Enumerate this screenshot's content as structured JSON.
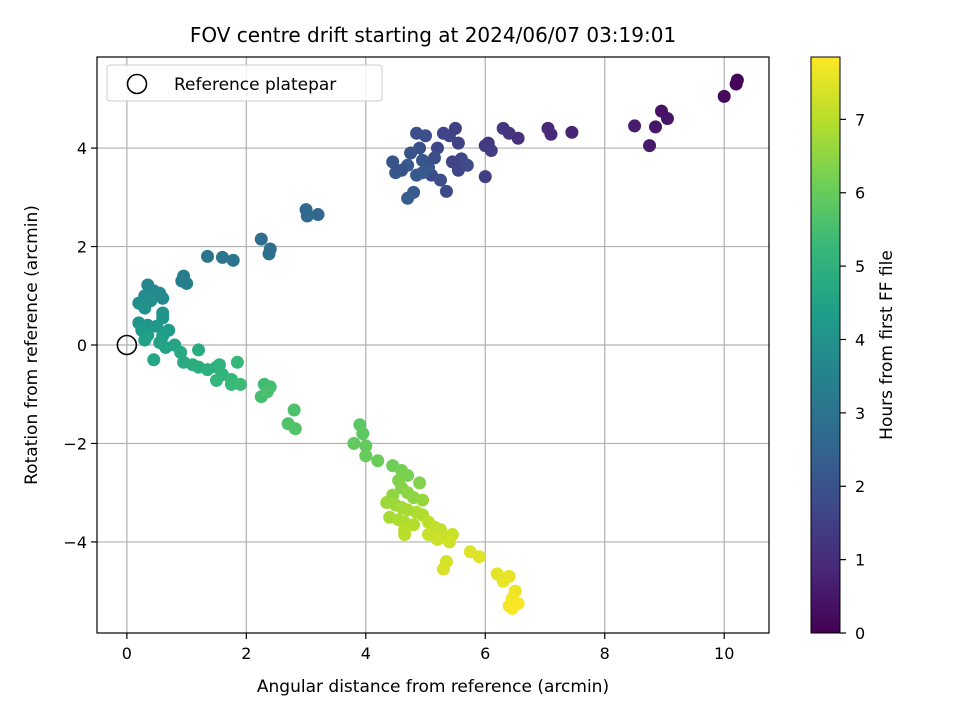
{
  "chart_data": {
    "type": "scatter",
    "title": "FOV centre drift starting at 2024/06/07 03:19:01",
    "xlabel": "Angular distance from reference (arcmin)",
    "ylabel": "Rotation from reference (arcmin)",
    "xlim": [
      -0.5,
      10.75
    ],
    "ylim": [
      -5.85,
      5.85
    ],
    "xticks": [
      0,
      2,
      4,
      6,
      8,
      10
    ],
    "yticks": [
      -4,
      -2,
      0,
      2,
      4
    ],
    "xtick_labels": [
      "0",
      "2",
      "4",
      "6",
      "8",
      "10"
    ],
    "ytick_labels": [
      "−4",
      "−2",
      "0",
      "2",
      "4"
    ],
    "grid": true,
    "legend": {
      "placement": "upper-left",
      "entries": [
        {
          "label": "Reference platepar",
          "marker": "open-circle"
        }
      ]
    },
    "reference_point": {
      "x": 0,
      "y": 0
    },
    "colorbar": {
      "label": "Hours from first FF file",
      "colormap": "viridis",
      "range": [
        0,
        7.85
      ],
      "ticks": [
        0,
        1,
        2,
        3,
        4,
        5,
        6,
        7
      ],
      "tick_labels": [
        "0",
        "1",
        "2",
        "3",
        "4",
        "5",
        "6",
        "7"
      ]
    },
    "colormap_stops": [
      "#440154",
      "#482878",
      "#3e4989",
      "#31688e",
      "#26828e",
      "#1f9e89",
      "#35b779",
      "#6ece58",
      "#b5de2b",
      "#fde725"
    ],
    "points": [
      {
        "x": 10.22,
        "y": 5.38,
        "h": 0.05
      },
      {
        "x": 10.2,
        "y": 5.3,
        "h": 0.1
      },
      {
        "x": 10.0,
        "y": 5.05,
        "h": 0.2
      },
      {
        "x": 8.95,
        "y": 4.75,
        "h": 0.4
      },
      {
        "x": 9.05,
        "y": 4.6,
        "h": 0.45
      },
      {
        "x": 8.85,
        "y": 4.43,
        "h": 0.5
      },
      {
        "x": 8.5,
        "y": 4.45,
        "h": 0.6
      },
      {
        "x": 8.75,
        "y": 4.05,
        "h": 0.55
      },
      {
        "x": 7.45,
        "y": 4.32,
        "h": 0.8
      },
      {
        "x": 7.05,
        "y": 4.4,
        "h": 0.9
      },
      {
        "x": 7.1,
        "y": 4.28,
        "h": 0.95
      },
      {
        "x": 6.55,
        "y": 4.2,
        "h": 1.1
      },
      {
        "x": 6.4,
        "y": 4.3,
        "h": 1.2
      },
      {
        "x": 6.3,
        "y": 4.4,
        "h": 1.25
      },
      {
        "x": 6.05,
        "y": 4.1,
        "h": 1.3
      },
      {
        "x": 6.0,
        "y": 4.05,
        "h": 1.35
      },
      {
        "x": 6.1,
        "y": 3.95,
        "h": 1.4
      },
      {
        "x": 6.0,
        "y": 3.42,
        "h": 1.45
      },
      {
        "x": 5.5,
        "y": 4.4,
        "h": 1.5
      },
      {
        "x": 5.55,
        "y": 4.1,
        "h": 1.55
      },
      {
        "x": 5.4,
        "y": 4.25,
        "h": 1.6
      },
      {
        "x": 5.3,
        "y": 4.3,
        "h": 1.65
      },
      {
        "x": 5.2,
        "y": 4.0,
        "h": 1.7
      },
      {
        "x": 5.6,
        "y": 3.78,
        "h": 1.75
      },
      {
        "x": 5.7,
        "y": 3.65,
        "h": 1.8
      },
      {
        "x": 5.45,
        "y": 3.72,
        "h": 1.6
      },
      {
        "x": 5.55,
        "y": 3.55,
        "h": 1.7
      },
      {
        "x": 5.35,
        "y": 3.12,
        "h": 1.75
      },
      {
        "x": 5.1,
        "y": 3.45,
        "h": 1.8
      },
      {
        "x": 5.25,
        "y": 3.35,
        "h": 1.85
      },
      {
        "x": 5.0,
        "y": 4.25,
        "h": 1.9
      },
      {
        "x": 4.85,
        "y": 4.3,
        "h": 1.95
      },
      {
        "x": 4.9,
        "y": 4.0,
        "h": 2.0
      },
      {
        "x": 4.75,
        "y": 3.9,
        "h": 2.05
      },
      {
        "x": 4.95,
        "y": 3.75,
        "h": 2.1
      },
      {
        "x": 5.05,
        "y": 3.6,
        "h": 2.15
      },
      {
        "x": 4.7,
        "y": 3.65,
        "h": 2.2
      },
      {
        "x": 4.6,
        "y": 3.55,
        "h": 2.0
      },
      {
        "x": 4.45,
        "y": 3.72,
        "h": 2.05
      },
      {
        "x": 4.5,
        "y": 3.5,
        "h": 2.1
      },
      {
        "x": 4.85,
        "y": 3.45,
        "h": 2.15
      },
      {
        "x": 4.95,
        "y": 3.5,
        "h": 2.2
      },
      {
        "x": 4.8,
        "y": 3.1,
        "h": 2.25
      },
      {
        "x": 4.7,
        "y": 2.98,
        "h": 2.3
      },
      {
        "x": 5.15,
        "y": 3.8,
        "h": 1.9
      },
      {
        "x": 3.2,
        "y": 2.65,
        "h": 2.6
      },
      {
        "x": 3.0,
        "y": 2.75,
        "h": 2.65
      },
      {
        "x": 3.02,
        "y": 2.62,
        "h": 2.7
      },
      {
        "x": 2.25,
        "y": 2.15,
        "h": 2.8
      },
      {
        "x": 2.4,
        "y": 1.95,
        "h": 2.85
      },
      {
        "x": 2.38,
        "y": 1.85,
        "h": 2.9
      },
      {
        "x": 1.35,
        "y": 1.8,
        "h": 3.0
      },
      {
        "x": 1.6,
        "y": 1.78,
        "h": 3.05
      },
      {
        "x": 1.78,
        "y": 1.72,
        "h": 3.1
      },
      {
        "x": 0.95,
        "y": 1.4,
        "h": 3.3
      },
      {
        "x": 0.92,
        "y": 1.3,
        "h": 3.35
      },
      {
        "x": 1.0,
        "y": 1.25,
        "h": 3.4
      },
      {
        "x": 0.35,
        "y": 1.22,
        "h": 3.6
      },
      {
        "x": 0.45,
        "y": 1.1,
        "h": 3.65
      },
      {
        "x": 0.55,
        "y": 1.05,
        "h": 3.7
      },
      {
        "x": 0.6,
        "y": 0.95,
        "h": 3.75
      },
      {
        "x": 0.3,
        "y": 1.0,
        "h": 3.8
      },
      {
        "x": 0.4,
        "y": 0.9,
        "h": 3.85
      },
      {
        "x": 0.2,
        "y": 0.85,
        "h": 3.9
      },
      {
        "x": 0.3,
        "y": 0.75,
        "h": 3.95
      },
      {
        "x": 0.6,
        "y": 0.65,
        "h": 4.0
      },
      {
        "x": 0.6,
        "y": 0.55,
        "h": 4.05
      },
      {
        "x": 0.2,
        "y": 0.45,
        "h": 4.1
      },
      {
        "x": 0.35,
        "y": 0.4,
        "h": 4.15
      },
      {
        "x": 0.5,
        "y": 0.38,
        "h": 4.2
      },
      {
        "x": 0.25,
        "y": 0.3,
        "h": 4.25
      },
      {
        "x": 0.7,
        "y": 0.3,
        "h": 4.3
      },
      {
        "x": 0.35,
        "y": 0.2,
        "h": 4.35
      },
      {
        "x": 0.6,
        "y": 0.18,
        "h": 4.4
      },
      {
        "x": 0.3,
        "y": 0.1,
        "h": 4.45
      },
      {
        "x": 0.55,
        "y": 0.05,
        "h": 4.5
      },
      {
        "x": 0.65,
        "y": -0.05,
        "h": 4.55
      },
      {
        "x": 0.8,
        "y": 0.0,
        "h": 4.6
      },
      {
        "x": 0.45,
        "y": -0.3,
        "h": 4.65
      },
      {
        "x": 0.9,
        "y": -0.15,
        "h": 4.7
      },
      {
        "x": 0.95,
        "y": -0.35,
        "h": 4.75
      },
      {
        "x": 1.2,
        "y": -0.1,
        "h": 4.8
      },
      {
        "x": 1.1,
        "y": -0.4,
        "h": 4.85
      },
      {
        "x": 1.2,
        "y": -0.45,
        "h": 4.9
      },
      {
        "x": 1.35,
        "y": -0.5,
        "h": 4.95
      },
      {
        "x": 1.5,
        "y": -0.45,
        "h": 5.0
      },
      {
        "x": 1.55,
        "y": -0.4,
        "h": 5.05
      },
      {
        "x": 1.6,
        "y": -0.6,
        "h": 5.1
      },
      {
        "x": 1.5,
        "y": -0.72,
        "h": 5.15
      },
      {
        "x": 1.75,
        "y": -0.7,
        "h": 5.2
      },
      {
        "x": 1.85,
        "y": -0.35,
        "h": 5.25
      },
      {
        "x": 1.75,
        "y": -0.8,
        "h": 5.3
      },
      {
        "x": 1.9,
        "y": -0.8,
        "h": 5.35
      },
      {
        "x": 2.3,
        "y": -0.8,
        "h": 5.4
      },
      {
        "x": 2.4,
        "y": -0.85,
        "h": 5.45
      },
      {
        "x": 2.25,
        "y": -1.05,
        "h": 5.5
      },
      {
        "x": 2.35,
        "y": -0.95,
        "h": 5.55
      },
      {
        "x": 2.8,
        "y": -1.32,
        "h": 5.6
      },
      {
        "x": 2.7,
        "y": -1.6,
        "h": 5.65
      },
      {
        "x": 2.82,
        "y": -1.7,
        "h": 5.7
      },
      {
        "x": 3.9,
        "y": -1.62,
        "h": 5.8
      },
      {
        "x": 3.95,
        "y": -1.8,
        "h": 5.85
      },
      {
        "x": 3.8,
        "y": -2.0,
        "h": 5.9
      },
      {
        "x": 4.0,
        "y": -2.05,
        "h": 5.95
      },
      {
        "x": 4.0,
        "y": -2.25,
        "h": 6.0
      },
      {
        "x": 4.2,
        "y": -2.35,
        "h": 6.05
      },
      {
        "x": 4.45,
        "y": -2.45,
        "h": 6.1
      },
      {
        "x": 4.6,
        "y": -2.55,
        "h": 6.2
      },
      {
        "x": 4.7,
        "y": -2.65,
        "h": 6.25
      },
      {
        "x": 4.55,
        "y": -2.75,
        "h": 6.3
      },
      {
        "x": 4.9,
        "y": -2.8,
        "h": 6.35
      },
      {
        "x": 4.6,
        "y": -2.9,
        "h": 6.4
      },
      {
        "x": 4.7,
        "y": -3.0,
        "h": 6.45
      },
      {
        "x": 4.8,
        "y": -3.1,
        "h": 6.5
      },
      {
        "x": 4.45,
        "y": -3.05,
        "h": 6.55
      },
      {
        "x": 4.95,
        "y": -3.15,
        "h": 6.6
      },
      {
        "x": 4.35,
        "y": -3.2,
        "h": 6.65
      },
      {
        "x": 4.5,
        "y": -3.25,
        "h": 6.7
      },
      {
        "x": 4.6,
        "y": -3.3,
        "h": 6.75
      },
      {
        "x": 4.7,
        "y": -3.35,
        "h": 6.8
      },
      {
        "x": 4.85,
        "y": -3.4,
        "h": 6.85
      },
      {
        "x": 4.95,
        "y": -3.45,
        "h": 6.9
      },
      {
        "x": 4.4,
        "y": -3.5,
        "h": 6.8
      },
      {
        "x": 4.55,
        "y": -3.55,
        "h": 6.85
      },
      {
        "x": 4.65,
        "y": -3.6,
        "h": 6.9
      },
      {
        "x": 4.8,
        "y": -3.65,
        "h": 6.95
      },
      {
        "x": 4.65,
        "y": -3.75,
        "h": 7.0
      },
      {
        "x": 4.65,
        "y": -3.85,
        "h": 7.0
      },
      {
        "x": 5.05,
        "y": -3.6,
        "h": 7.05
      },
      {
        "x": 5.15,
        "y": -3.7,
        "h": 7.1
      },
      {
        "x": 5.25,
        "y": -3.75,
        "h": 7.15
      },
      {
        "x": 5.05,
        "y": -3.85,
        "h": 7.2
      },
      {
        "x": 5.3,
        "y": -3.9,
        "h": 7.2
      },
      {
        "x": 5.45,
        "y": -3.85,
        "h": 7.25
      },
      {
        "x": 5.2,
        "y": -3.95,
        "h": 7.25
      },
      {
        "x": 5.4,
        "y": -4.0,
        "h": 7.3
      },
      {
        "x": 5.35,
        "y": -4.4,
        "h": 7.35
      },
      {
        "x": 5.3,
        "y": -4.55,
        "h": 7.4
      },
      {
        "x": 5.75,
        "y": -4.2,
        "h": 7.45
      },
      {
        "x": 5.9,
        "y": -4.3,
        "h": 7.5
      },
      {
        "x": 6.2,
        "y": -4.65,
        "h": 7.55
      },
      {
        "x": 6.3,
        "y": -4.8,
        "h": 7.6
      },
      {
        "x": 6.4,
        "y": -4.7,
        "h": 7.6
      },
      {
        "x": 6.5,
        "y": -5.0,
        "h": 7.65
      },
      {
        "x": 6.45,
        "y": -5.15,
        "h": 7.7
      },
      {
        "x": 6.4,
        "y": -5.3,
        "h": 7.75
      },
      {
        "x": 6.55,
        "y": -5.25,
        "h": 7.8
      },
      {
        "x": 6.45,
        "y": -5.35,
        "h": 7.8
      }
    ]
  }
}
